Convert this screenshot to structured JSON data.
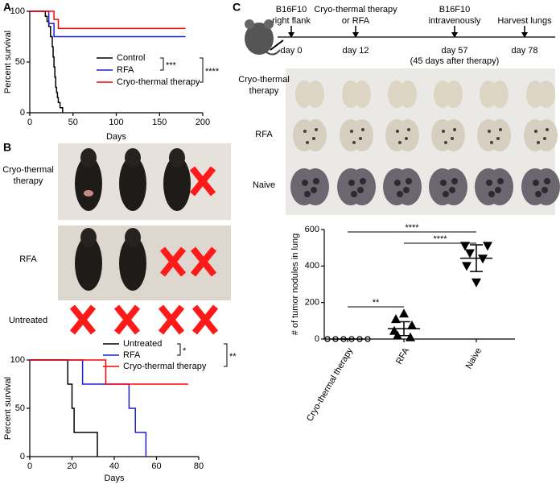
{
  "panel_labels": [
    "A",
    "B",
    "C"
  ],
  "chart_data": [
    {
      "type": "step",
      "y_label": "Percent survival",
      "x_label": "Days",
      "xlim": [
        0,
        200
      ],
      "xticks": [
        0,
        50,
        100,
        150,
        200
      ],
      "ylim": [
        0,
        100
      ],
      "yticks": [
        0,
        50,
        100
      ],
      "series": [
        {
          "name": "Control",
          "color": "#000000",
          "x": [
            0,
            18,
            20,
            22,
            24,
            26,
            27,
            28,
            29,
            30,
            31,
            32,
            33,
            35,
            38
          ],
          "values": [
            100,
            95,
            90,
            85,
            75,
            65,
            55,
            45,
            35,
            25,
            20,
            15,
            10,
            5,
            0
          ]
        },
        {
          "name": "RFA",
          "color": "#1f1fd6",
          "x": [
            0,
            22,
            28,
            180
          ],
          "values": [
            100,
            88,
            75,
            75
          ]
        },
        {
          "name": "Cryo-thermal therapy",
          "color": "#ff0000",
          "x": [
            0,
            28,
            33,
            180
          ],
          "values": [
            100,
            92,
            83,
            83
          ]
        }
      ],
      "significance": [
        "***",
        "****"
      ]
    },
    {
      "type": "step",
      "y_label": "Percent survival",
      "x_label": "Days",
      "xlim": [
        0,
        80
      ],
      "xticks": [
        0,
        20,
        40,
        60,
        80
      ],
      "ylim": [
        0,
        100
      ],
      "yticks": [
        0,
        50,
        100
      ],
      "series": [
        {
          "name": "Untreated",
          "color": "#000000",
          "x": [
            0,
            18,
            20,
            21,
            32
          ],
          "values": [
            100,
            75,
            50,
            25,
            0
          ]
        },
        {
          "name": "RFA",
          "color": "#1f1fd6",
          "x": [
            0,
            25,
            47,
            50,
            55
          ],
          "values": [
            100,
            75,
            50,
            25,
            0
          ]
        },
        {
          "name": "Cryo-thermal therapy",
          "color": "#ff0000",
          "x": [
            0,
            36,
            75
          ],
          "values": [
            100,
            75,
            75
          ]
        }
      ],
      "significance": [
        "*",
        "**"
      ]
    },
    {
      "type": "dot",
      "y_label": "# of tumor nodules in lung",
      "categories": [
        "Cryo-thermal therapy",
        "RFA",
        "Naive"
      ],
      "ylim": [
        0,
        600
      ],
      "yticks": [
        0,
        200,
        400,
        600
      ],
      "color": "#000000",
      "markers": [
        "circle",
        "triangle-up",
        "triangle-down"
      ],
      "points": [
        [
          0,
          0,
          0,
          0,
          0,
          0
        ],
        [
          140,
          110,
          75,
          45,
          20,
          10
        ],
        [
          510,
          510,
          470,
          440,
          400,
          310
        ]
      ],
      "means": [
        0,
        57,
        443
      ],
      "sd": [
        0,
        38,
        73
      ],
      "significance": [
        "****",
        "****",
        "**"
      ]
    }
  ],
  "mouse_photos": {
    "rows": [
      {
        "label_lines": [
          "Cryo-thermal",
          "therapy"
        ]
      },
      {
        "label_lines": [
          "RFA"
        ]
      },
      {
        "label_lines": [
          "Untreated"
        ]
      }
    ]
  },
  "timeline": {
    "events": [
      {
        "above": [
          "B16F10",
          "right flank"
        ],
        "below": [
          "day 0"
        ]
      },
      {
        "above": [
          "Cryo-thermal therapy",
          "or RFA"
        ],
        "below": [
          "day 12"
        ]
      },
      {
        "above": [
          "B16F10",
          "intravenously"
        ],
        "below": [
          "day 57",
          "(45 days after therapy)"
        ]
      },
      {
        "above": [
          "Harvest lungs"
        ],
        "below": [
          "day 78"
        ]
      }
    ]
  },
  "lung_photos": {
    "rows": [
      {
        "label_lines": [
          "Cryo-thermal",
          "therapy"
        ]
      },
      {
        "label_lines": [
          "RFA"
        ]
      },
      {
        "label_lines": [
          "Naive"
        ]
      }
    ]
  }
}
